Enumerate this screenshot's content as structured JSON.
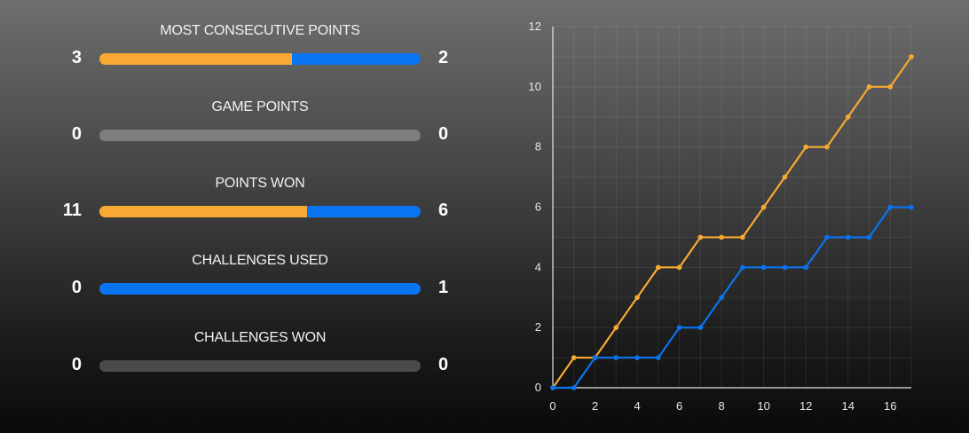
{
  "colors": {
    "player_a": "#f7a933",
    "player_b": "#0a74f0",
    "empty_bar": "#7d7d7d"
  },
  "stats": [
    {
      "label": "MOST CONSECUTIVE POINTS",
      "left": "3",
      "right": "2",
      "left_value": 3,
      "right_value": 2
    },
    {
      "label": "GAME POINTS",
      "left": "0",
      "right": "0",
      "left_value": 0,
      "right_value": 0
    },
    {
      "label": "POINTS WON",
      "left": "11",
      "right": "6",
      "left_value": 11,
      "right_value": 6
    },
    {
      "label": "CHALLENGES USED",
      "left": "0",
      "right": "1",
      "left_value": 0,
      "right_value": 1
    },
    {
      "label": "CHALLENGES WON",
      "left": "0",
      "right": "0",
      "left_value": 0,
      "right_value": 0
    }
  ],
  "chart_data": {
    "type": "line",
    "x": [
      0,
      1,
      2,
      3,
      4,
      5,
      6,
      7,
      8,
      9,
      10,
      11,
      12,
      13,
      14,
      15,
      16,
      17
    ],
    "series": [
      {
        "values": [
          0,
          1,
          1,
          2,
          3,
          4,
          4,
          5,
          5,
          5,
          6,
          7,
          8,
          8,
          9,
          10,
          10,
          11
        ],
        "color": "#f7a933"
      },
      {
        "values": [
          0,
          0,
          1,
          1,
          1,
          1,
          2,
          2,
          3,
          4,
          4,
          4,
          4,
          5,
          5,
          5,
          6,
          6
        ],
        "color": "#0a74f0"
      }
    ],
    "xlim": [
      0,
      17
    ],
    "ylim": [
      0,
      12
    ],
    "x_ticks": [
      "0",
      "2",
      "4",
      "6",
      "8",
      "10",
      "12",
      "14",
      "16"
    ],
    "y_ticks": [
      "0",
      "2",
      "4",
      "6",
      "8",
      "10",
      "12"
    ],
    "grid": true
  }
}
